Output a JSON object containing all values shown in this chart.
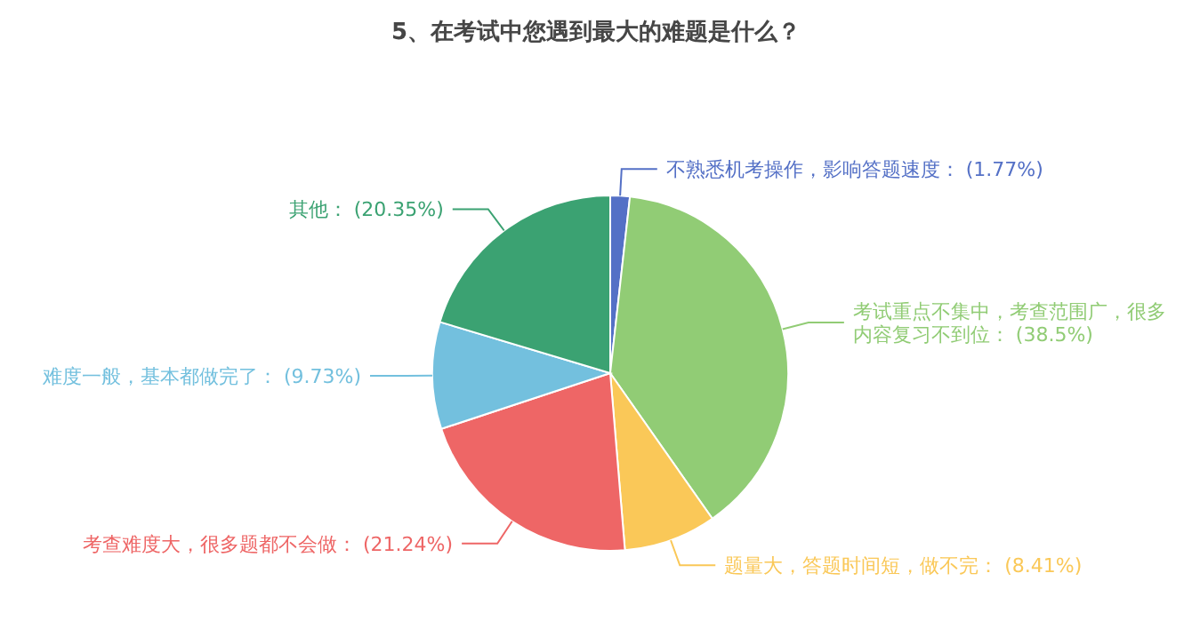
{
  "chart_data": {
    "type": "pie",
    "title": "5、在考试中您遇到最大的难题是什么？",
    "categories": [
      "不熟悉机考操作，影响答题速度",
      "考试重点不集中，考查范围广，很多内容复习不到位",
      "题量大，答题时间短，做不完",
      "考查难度大，很多题都不会做",
      "难度一般，基本都做完了",
      "其他"
    ],
    "values": [
      1.77,
      38.5,
      8.41,
      21.24,
      9.73,
      20.35
    ],
    "value_labels": [
      "(1.77%)",
      "(38.5%)",
      "(8.41%)",
      "(21.24%)",
      "(9.73%)",
      "(20.35%)"
    ],
    "colors": [
      "#5470c6",
      "#91cc75",
      "#fac858",
      "#ee6666",
      "#73c0de",
      "#3ba272"
    ]
  }
}
